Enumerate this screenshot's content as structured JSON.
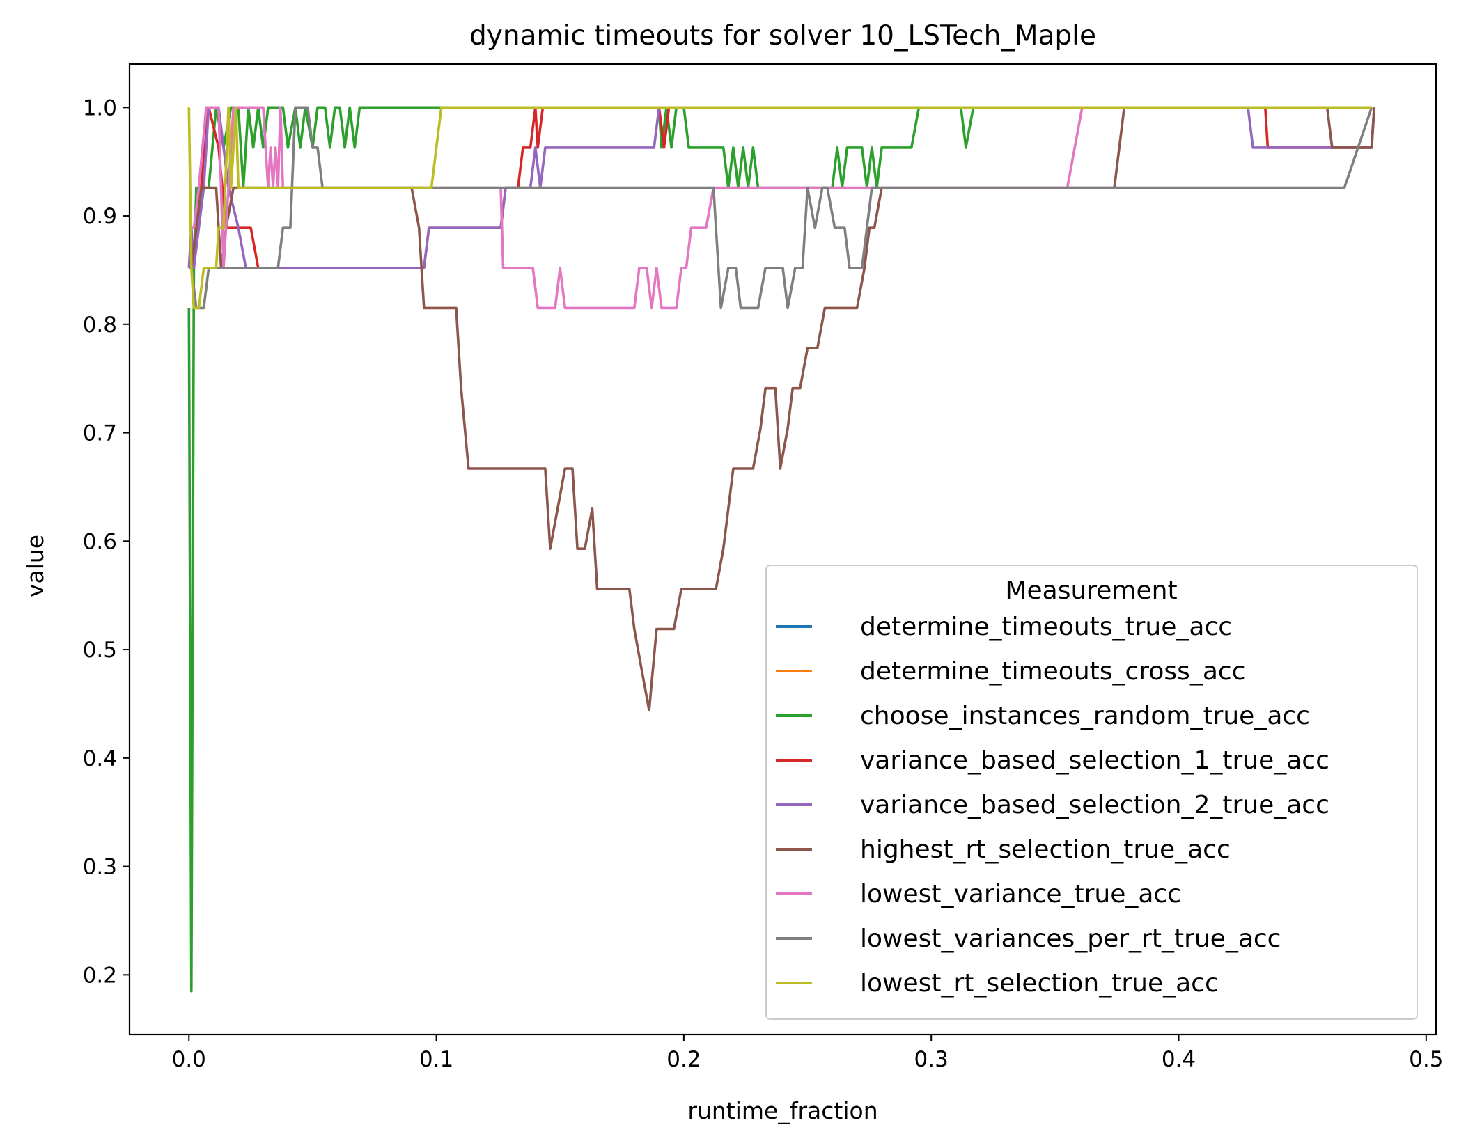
{
  "chart_data": {
    "type": "line",
    "title": "dynamic timeouts for solver 10_LSTech_Maple",
    "xlabel": "runtime_fraction",
    "ylabel": "value",
    "xlim": [
      -0.024,
      0.504
    ],
    "ylim": [
      0.145,
      1.04
    ],
    "xticks": [
      {
        "value": 0.0,
        "label": "0.0"
      },
      {
        "value": 0.1,
        "label": "0.1"
      },
      {
        "value": 0.2,
        "label": "0.2"
      },
      {
        "value": 0.3,
        "label": "0.3"
      },
      {
        "value": 0.4,
        "label": "0.4"
      },
      {
        "value": 0.5,
        "label": "0.5"
      }
    ],
    "yticks": [
      {
        "value": 0.2,
        "label": "0.2"
      },
      {
        "value": 0.3,
        "label": "0.3"
      },
      {
        "value": 0.4,
        "label": "0.4"
      },
      {
        "value": 0.5,
        "label": "0.5"
      },
      {
        "value": 0.6,
        "label": "0.6"
      },
      {
        "value": 0.7,
        "label": "0.7"
      },
      {
        "value": 0.8,
        "label": "0.8"
      },
      {
        "value": 0.9,
        "label": "0.9"
      },
      {
        "value": 1.0,
        "label": "1.0"
      }
    ],
    "grid": false,
    "legend": {
      "title": "Measurement",
      "placement": "lower-right"
    },
    "series": [
      {
        "name": "determine_timeouts_true_acc",
        "color": "#1f77b4",
        "points": []
      },
      {
        "name": "determine_timeouts_cross_acc",
        "color": "#ff7f0e",
        "points": []
      },
      {
        "name": "choose_instances_random_true_acc",
        "color": "#2ca02c",
        "points": [
          [
            0,
            0.815
          ],
          [
            0.001,
            0.185
          ],
          [
            0.002,
            0.852
          ],
          [
            0.003,
            0.926
          ],
          [
            0.008,
            0.926
          ],
          [
            0.011,
            1.0
          ],
          [
            0.014,
            0.963
          ],
          [
            0.017,
            1.0
          ],
          [
            0.02,
            1.0
          ],
          [
            0.022,
            0.926
          ],
          [
            0.024,
            1.0
          ],
          [
            0.026,
            0.963
          ],
          [
            0.028,
            1.0
          ],
          [
            0.03,
            0.963
          ],
          [
            0.032,
            1.0
          ],
          [
            0.038,
            1.0
          ],
          [
            0.04,
            0.963
          ],
          [
            0.043,
            1.0
          ],
          [
            0.045,
            0.963
          ],
          [
            0.047,
            1.0
          ],
          [
            0.05,
            0.963
          ],
          [
            0.052,
            1.0
          ],
          [
            0.055,
            1.0
          ],
          [
            0.057,
            0.963
          ],
          [
            0.059,
            1.0
          ],
          [
            0.061,
            1.0
          ],
          [
            0.063,
            0.963
          ],
          [
            0.065,
            1.0
          ],
          [
            0.067,
            0.963
          ],
          [
            0.069,
            1.0
          ],
          [
            0.1,
            1.0
          ],
          [
            0.19,
            1.0
          ],
          [
            0.191,
            0.963
          ],
          [
            0.193,
            1.0
          ],
          [
            0.195,
            0.963
          ],
          [
            0.197,
            1.0
          ],
          [
            0.2,
            1.0
          ],
          [
            0.202,
            0.963
          ],
          [
            0.21,
            0.963
          ],
          [
            0.213,
            0.963
          ],
          [
            0.216,
            0.963
          ],
          [
            0.218,
            0.926
          ],
          [
            0.22,
            0.963
          ],
          [
            0.222,
            0.926
          ],
          [
            0.224,
            0.963
          ],
          [
            0.226,
            0.926
          ],
          [
            0.228,
            0.963
          ],
          [
            0.23,
            0.926
          ],
          [
            0.26,
            0.926
          ],
          [
            0.262,
            0.963
          ],
          [
            0.264,
            0.926
          ],
          [
            0.266,
            0.963
          ],
          [
            0.272,
            0.963
          ],
          [
            0.274,
            0.926
          ],
          [
            0.276,
            0.963
          ],
          [
            0.278,
            0.926
          ],
          [
            0.28,
            0.963
          ],
          [
            0.292,
            0.963
          ],
          [
            0.295,
            1.0
          ],
          [
            0.312,
            1.0
          ],
          [
            0.314,
            0.963
          ],
          [
            0.317,
            1.0
          ],
          [
            0.478,
            1.0
          ]
        ]
      },
      {
        "name": "variance_based_selection_1_true_acc",
        "color": "#d62728",
        "points": [
          [
            0,
            0.852
          ],
          [
            0.002,
            0.852
          ],
          [
            0.005,
            0.926
          ],
          [
            0.008,
            1.0
          ],
          [
            0.012,
            0.963
          ],
          [
            0.015,
            0.889
          ],
          [
            0.02,
            0.889
          ],
          [
            0.025,
            0.889
          ],
          [
            0.028,
            0.852
          ],
          [
            0.095,
            0.852
          ],
          [
            0.097,
            0.889
          ],
          [
            0.126,
            0.889
          ],
          [
            0.128,
            0.926
          ],
          [
            0.133,
            0.926
          ],
          [
            0.135,
            0.963
          ],
          [
            0.138,
            0.963
          ],
          [
            0.14,
            1.0
          ],
          [
            0.141,
            0.963
          ],
          [
            0.143,
            1.0
          ],
          [
            0.144,
            1.0
          ],
          [
            0.19,
            1.0
          ],
          [
            0.192,
            0.963
          ],
          [
            0.194,
            1.0
          ],
          [
            0.435,
            1.0
          ],
          [
            0.436,
            0.963
          ],
          [
            0.478,
            0.963
          ],
          [
            0.479,
            1.0
          ]
        ]
      },
      {
        "name": "variance_based_selection_2_true_acc",
        "color": "#9467bd",
        "points": [
          [
            0,
            0.852
          ],
          [
            0.001,
            0.889
          ],
          [
            0.002,
            0.852
          ],
          [
            0.004,
            0.889
          ],
          [
            0.006,
            0.926
          ],
          [
            0.008,
            1.0
          ],
          [
            0.012,
            1.0
          ],
          [
            0.014,
            0.963
          ],
          [
            0.016,
            0.926
          ],
          [
            0.02,
            0.889
          ],
          [
            0.023,
            0.852
          ],
          [
            0.095,
            0.852
          ],
          [
            0.097,
            0.889
          ],
          [
            0.126,
            0.889
          ],
          [
            0.128,
            0.926
          ],
          [
            0.138,
            0.926
          ],
          [
            0.14,
            0.963
          ],
          [
            0.142,
            0.926
          ],
          [
            0.144,
            0.963
          ],
          [
            0.188,
            0.963
          ],
          [
            0.19,
            1.0
          ],
          [
            0.428,
            1.0
          ],
          [
            0.43,
            0.963
          ],
          [
            0.478,
            0.963
          ],
          [
            0.479,
            1.0
          ]
        ]
      },
      {
        "name": "highest_rt_selection_true_acc",
        "color": "#8c564b",
        "points": [
          [
            0,
            0.852
          ],
          [
            0.001,
            0.852
          ],
          [
            0.005,
            0.926
          ],
          [
            0.008,
            0.926
          ],
          [
            0.011,
            0.926
          ],
          [
            0.013,
            0.852
          ],
          [
            0.015,
            0.889
          ],
          [
            0.018,
            0.926
          ],
          [
            0.09,
            0.926
          ],
          [
            0.093,
            0.889
          ],
          [
            0.095,
            0.815
          ],
          [
            0.108,
            0.815
          ],
          [
            0.11,
            0.741
          ],
          [
            0.113,
            0.667
          ],
          [
            0.144,
            0.667
          ],
          [
            0.146,
            0.593
          ],
          [
            0.149,
            0.63
          ],
          [
            0.152,
            0.667
          ],
          [
            0.155,
            0.667
          ],
          [
            0.157,
            0.593
          ],
          [
            0.16,
            0.593
          ],
          [
            0.163,
            0.63
          ],
          [
            0.165,
            0.556
          ],
          [
            0.178,
            0.556
          ],
          [
            0.18,
            0.519
          ],
          [
            0.183,
            0.481
          ],
          [
            0.186,
            0.444
          ],
          [
            0.189,
            0.519
          ],
          [
            0.196,
            0.519
          ],
          [
            0.199,
            0.556
          ],
          [
            0.213,
            0.556
          ],
          [
            0.216,
            0.593
          ],
          [
            0.218,
            0.63
          ],
          [
            0.22,
            0.667
          ],
          [
            0.228,
            0.667
          ],
          [
            0.231,
            0.704
          ],
          [
            0.233,
            0.741
          ],
          [
            0.237,
            0.741
          ],
          [
            0.239,
            0.667
          ],
          [
            0.242,
            0.704
          ],
          [
            0.244,
            0.741
          ],
          [
            0.247,
            0.741
          ],
          [
            0.25,
            0.778
          ],
          [
            0.254,
            0.778
          ],
          [
            0.257,
            0.815
          ],
          [
            0.27,
            0.815
          ],
          [
            0.273,
            0.852
          ],
          [
            0.275,
            0.889
          ],
          [
            0.277,
            0.889
          ],
          [
            0.28,
            0.926
          ],
          [
            0.374,
            0.926
          ],
          [
            0.378,
            1.0
          ],
          [
            0.46,
            1.0
          ],
          [
            0.462,
            0.963
          ],
          [
            0.478,
            0.963
          ],
          [
            0.479,
            1.0
          ]
        ]
      },
      {
        "name": "lowest_variance_true_acc",
        "color": "#e377c2",
        "points": [
          [
            0,
            0.889
          ],
          [
            0.002,
            0.889
          ],
          [
            0.004,
            0.926
          ],
          [
            0.007,
            1.0
          ],
          [
            0.012,
            1.0
          ],
          [
            0.014,
            0.852
          ],
          [
            0.016,
            0.926
          ],
          [
            0.018,
            1.0
          ],
          [
            0.03,
            1.0
          ],
          [
            0.031,
            0.963
          ],
          [
            0.032,
            0.926
          ],
          [
            0.033,
            0.963
          ],
          [
            0.034,
            0.926
          ],
          [
            0.035,
            0.963
          ],
          [
            0.036,
            0.926
          ],
          [
            0.037,
            1.0
          ],
          [
            0.038,
            0.926
          ],
          [
            0.126,
            0.926
          ],
          [
            0.127,
            0.852
          ],
          [
            0.139,
            0.852
          ],
          [
            0.141,
            0.815
          ],
          [
            0.148,
            0.815
          ],
          [
            0.15,
            0.852
          ],
          [
            0.152,
            0.815
          ],
          [
            0.18,
            0.815
          ],
          [
            0.182,
            0.852
          ],
          [
            0.185,
            0.852
          ],
          [
            0.187,
            0.815
          ],
          [
            0.189,
            0.852
          ],
          [
            0.191,
            0.815
          ],
          [
            0.197,
            0.815
          ],
          [
            0.199,
            0.852
          ],
          [
            0.201,
            0.852
          ],
          [
            0.203,
            0.889
          ],
          [
            0.209,
            0.889
          ],
          [
            0.212,
            0.926
          ],
          [
            0.355,
            0.926
          ],
          [
            0.361,
            1.0
          ],
          [
            0.478,
            1.0
          ]
        ]
      },
      {
        "name": "lowest_variances_per_rt_true_acc",
        "color": "#7f7f7f",
        "points": [
          [
            0,
            0.852
          ],
          [
            0.001,
            0.852
          ],
          [
            0.003,
            0.815
          ],
          [
            0.006,
            0.815
          ],
          [
            0.008,
            0.852
          ],
          [
            0.036,
            0.852
          ],
          [
            0.038,
            0.889
          ],
          [
            0.041,
            0.889
          ],
          [
            0.043,
            1.0
          ],
          [
            0.048,
            1.0
          ],
          [
            0.05,
            0.963
          ],
          [
            0.052,
            0.963
          ],
          [
            0.054,
            0.926
          ],
          [
            0.212,
            0.926
          ],
          [
            0.215,
            0.815
          ],
          [
            0.218,
            0.852
          ],
          [
            0.221,
            0.852
          ],
          [
            0.223,
            0.815
          ],
          [
            0.23,
            0.815
          ],
          [
            0.233,
            0.852
          ],
          [
            0.24,
            0.852
          ],
          [
            0.242,
            0.815
          ],
          [
            0.245,
            0.852
          ],
          [
            0.248,
            0.852
          ],
          [
            0.25,
            0.926
          ],
          [
            0.253,
            0.889
          ],
          [
            0.256,
            0.926
          ],
          [
            0.258,
            0.926
          ],
          [
            0.261,
            0.889
          ],
          [
            0.265,
            0.889
          ],
          [
            0.267,
            0.852
          ],
          [
            0.272,
            0.852
          ],
          [
            0.276,
            0.926
          ],
          [
            0.467,
            0.926
          ],
          [
            0.478,
            1.0
          ]
        ]
      },
      {
        "name": "lowest_rt_selection_true_acc",
        "color": "#bcbd22",
        "points": [
          [
            0,
            1.0
          ],
          [
            0.001,
            0.852
          ],
          [
            0.002,
            0.815
          ],
          [
            0.004,
            0.815
          ],
          [
            0.006,
            0.852
          ],
          [
            0.011,
            0.852
          ],
          [
            0.012,
            0.889
          ],
          [
            0.014,
            0.889
          ],
          [
            0.016,
            1.0
          ],
          [
            0.017,
            0.926
          ],
          [
            0.019,
            1.0
          ],
          [
            0.02,
            0.926
          ],
          [
            0.098,
            0.926
          ],
          [
            0.102,
            1.0
          ],
          [
            0.478,
            1.0
          ]
        ]
      }
    ]
  }
}
